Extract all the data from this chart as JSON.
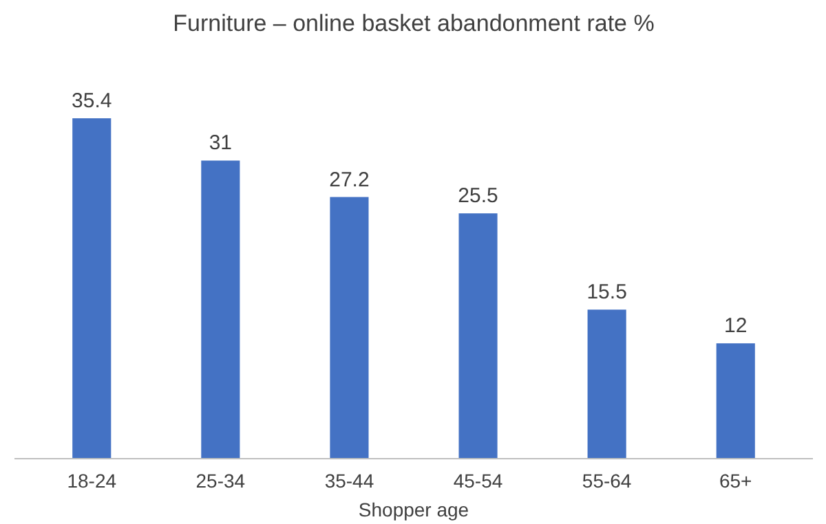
{
  "chart_data": {
    "type": "bar",
    "title": "Furniture – online basket abandonment rate %",
    "xlabel": "Shopper age",
    "categories": [
      "18-24",
      "25-34",
      "35-44",
      "45-54",
      "55-64",
      "65+"
    ],
    "values": [
      35.4,
      31,
      27.2,
      25.5,
      15.5,
      12
    ],
    "color": "#4472c4",
    "tick_labels": "x",
    "data_labels": true,
    "grid": false
  }
}
